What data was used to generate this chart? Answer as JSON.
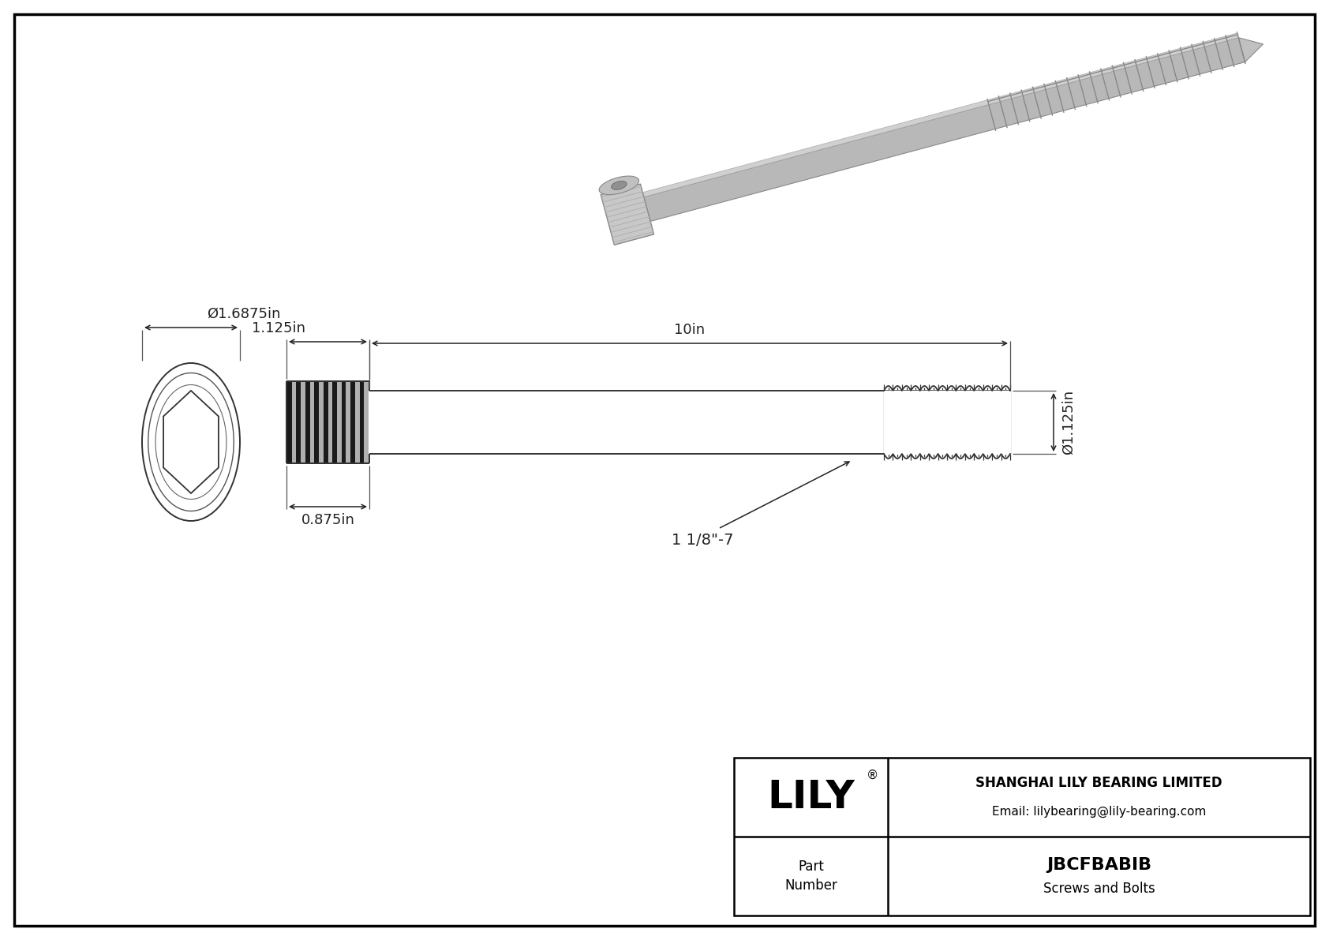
{
  "bg_color": "#ffffff",
  "border_color": "#000000",
  "line_color": "#333333",
  "dim_color": "#222222",
  "title_company": "SHANGHAI LILY BEARING LIMITED",
  "title_email": "Email: lilybearing@lily-bearing.com",
  "part_number": "JBCFBABIB",
  "part_category": "Screws and Bolts",
  "logo_text": "LILY",
  "dim_head_diameter": "Ø1.6875in",
  "dim_head_height": "0.875in",
  "dim_shank_length": "1.125in",
  "dim_body_length": "10in",
  "dim_thread_diameter": "Ø1.125in",
  "dim_thread_label": "1 1/8\"-7",
  "fig_w": 16.84,
  "fig_h": 11.91,
  "dpi": 100
}
